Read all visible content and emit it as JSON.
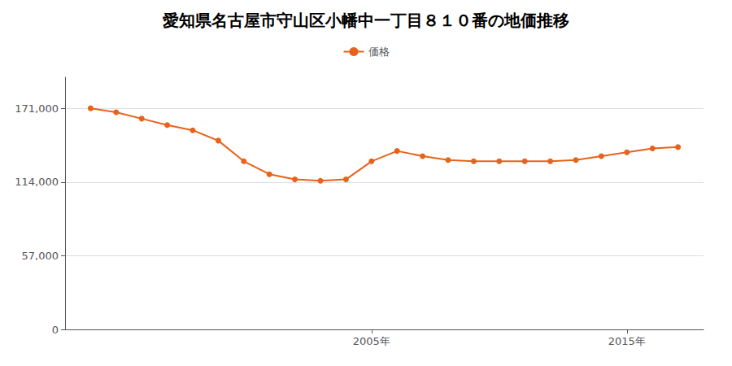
{
  "chart_data": {
    "type": "line",
    "title": "愛知県名古屋市守山区小幡中一丁目８１０番の地価推移",
    "x": [
      1994,
      1995,
      1996,
      1997,
      1998,
      1999,
      2000,
      2001,
      2002,
      2003,
      2004,
      2005,
      2006,
      2007,
      2008,
      2009,
      2010,
      2011,
      2012,
      2013,
      2014,
      2015,
      2016,
      2017
    ],
    "series": [
      {
        "name": "価格",
        "color": "#e8621a",
        "marker": "circle",
        "values": [
          171000,
          168000,
          163000,
          158000,
          154000,
          146000,
          130000,
          120000,
          116000,
          115000,
          116000,
          130000,
          138000,
          134000,
          131000,
          130000,
          130000,
          130000,
          130000,
          131000,
          134000,
          137000,
          140000,
          141000
        ]
      }
    ],
    "xlim": [
      1993,
      2018
    ],
    "xticks": [
      {
        "value": 2005,
        "label": "2005年"
      },
      {
        "value": 2015,
        "label": "2015年"
      }
    ],
    "ylim": [
      0,
      195000
    ],
    "yticks": [
      0,
      {
        "value": 57000,
        "label": "57,000"
      },
      {
        "value": 114000,
        "label": "114,000"
      },
      {
        "value": 171000,
        "label": "171,000"
      }
    ],
    "grid": true,
    "legend": "top"
  }
}
